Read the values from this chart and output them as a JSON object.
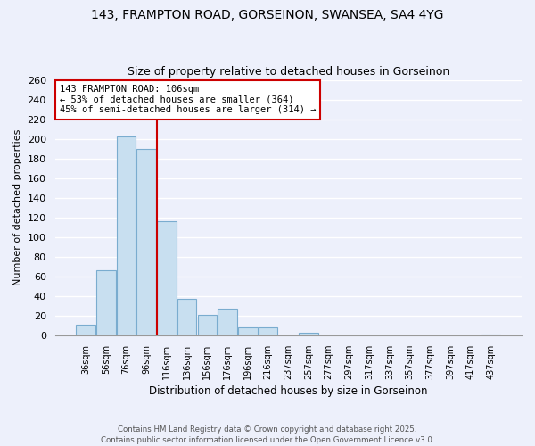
{
  "title": "143, FRAMPTON ROAD, GORSEINON, SWANSEA, SA4 4YG",
  "subtitle": "Size of property relative to detached houses in Gorseinon",
  "xlabel": "Distribution of detached houses by size in Gorseinon",
  "ylabel": "Number of detached properties",
  "bin_labels": [
    "36sqm",
    "56sqm",
    "76sqm",
    "96sqm",
    "116sqm",
    "136sqm",
    "156sqm",
    "176sqm",
    "196sqm",
    "216sqm",
    "237sqm",
    "257sqm",
    "277sqm",
    "297sqm",
    "317sqm",
    "337sqm",
    "357sqm",
    "377sqm",
    "397sqm",
    "417sqm",
    "437sqm"
  ],
  "bar_values": [
    11,
    66,
    202,
    190,
    116,
    37,
    21,
    27,
    8,
    8,
    0,
    3,
    0,
    0,
    0,
    0,
    0,
    0,
    0,
    0,
    1
  ],
  "bar_color": "#c8dff0",
  "bar_edge_color": "#7aaccf",
  "marker_line_color": "#cc0000",
  "annotation_line1": "143 FRAMPTON ROAD: 106sqm",
  "annotation_line2": "← 53% of detached houses are smaller (364)",
  "annotation_line3": "45% of semi-detached houses are larger (314) →",
  "annotation_box_color": "#ffffff",
  "annotation_box_edge": "#cc0000",
  "ylim": [
    0,
    260
  ],
  "yticks": [
    0,
    20,
    40,
    60,
    80,
    100,
    120,
    140,
    160,
    180,
    200,
    220,
    240,
    260
  ],
  "footer_line1": "Contains HM Land Registry data © Crown copyright and database right 2025.",
  "footer_line2": "Contains public sector information licensed under the Open Government Licence v3.0.",
  "bg_color": "#edf0fb",
  "grid_color": "#ffffff"
}
